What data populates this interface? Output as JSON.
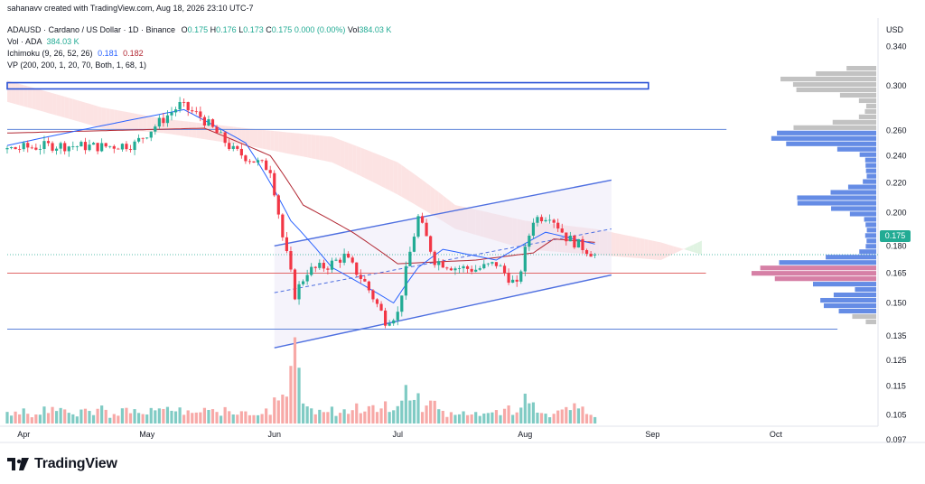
{
  "header": {
    "creator": "sahanavv created with TradingView.com, Aug 18, 2026 23:10 UTC-7",
    "symbol": "ADAUSD · Cardano / US Dollar · 1D · Binance",
    "ohlc": {
      "o_label": "O",
      "o": "0.175",
      "h_label": "H",
      "h": "0.176",
      "l_label": "L",
      "l": "0.173",
      "c_label": "C",
      "c": "0.175",
      "change": "0.000 (0.00%)",
      "vol_label": "Vol",
      "vol": "384.03 K"
    },
    "vol_line": {
      "label": "Vol · ADA",
      "value": "384.03 K"
    },
    "ichimoku": {
      "label": "Ichimoku (9, 26, 52, 26)",
      "v1": "0.181",
      "v2": "0.182"
    },
    "vp": {
      "label": "VP (200, 200, 1, 20, 70, Both, 1, 68, 1)"
    }
  },
  "brand": {
    "name": "TradingView"
  },
  "colors": {
    "up": "#22ab94",
    "down": "#f23645",
    "vol_up": "#80cbc4",
    "vol_down": "#f7a9a7",
    "tenkan": "#2962ff",
    "kijun": "#b22833",
    "cloud_bear": "#fbd9d9",
    "cloud_bull": "#d6efd8",
    "channel": "#4e6fe0",
    "level": "#5b82d9",
    "support_red": "#e06666",
    "vp_grey": "#b7b7b7",
    "vp_blue": "#4a78e0",
    "vp_red": "#cf6a96"
  },
  "chart_data": {
    "type": "candlestick",
    "title": "ADAUSD · Cardano / US Dollar · 1D · Binance",
    "y_axis": {
      "unit": "USD",
      "scale": "log",
      "ticks": [
        "0.340",
        "0.300",
        "0.260",
        "0.240",
        "0.220",
        "0.200",
        "0.180",
        "0.165",
        "0.150",
        "0.135",
        "0.125",
        "0.115",
        "0.105",
        "0.097"
      ],
      "last_price": "0.175"
    },
    "x_axis": {
      "ticks": [
        "Apr",
        "May",
        "Jun",
        "Jul",
        "Aug",
        "Sep",
        "Oct"
      ],
      "start_date": "2026-03-28",
      "end_date": "2026-08-18",
      "range": [
        "2026-03-28",
        "2026-10-25"
      ]
    },
    "ohlc_anchors": [
      {
        "date": "2026-03-28",
        "close": 0.245
      },
      {
        "date": "2026-04-08",
        "close": 0.248
      },
      {
        "date": "2026-04-20",
        "close": 0.247
      },
      {
        "date": "2026-04-28",
        "close": 0.249
      },
      {
        "date": "2026-05-09",
        "close": 0.282
      },
      {
        "date": "2026-05-14",
        "close": 0.272
      },
      {
        "date": "2026-05-22",
        "close": 0.244
      },
      {
        "date": "2026-05-31",
        "close": 0.23
      },
      {
        "date": "2026-06-03",
        "close": 0.185
      },
      {
        "date": "2026-06-06",
        "close": 0.154
      },
      {
        "date": "2026-06-09",
        "close": 0.166
      },
      {
        "date": "2026-06-14",
        "close": 0.169
      },
      {
        "date": "2026-06-18",
        "close": 0.174
      },
      {
        "date": "2026-06-23",
        "close": 0.16
      },
      {
        "date": "2026-06-28",
        "close": 0.142
      },
      {
        "date": "2026-07-01",
        "close": 0.145
      },
      {
        "date": "2026-07-06",
        "close": 0.197
      },
      {
        "date": "2026-07-10",
        "close": 0.172
      },
      {
        "date": "2026-07-15",
        "close": 0.168
      },
      {
        "date": "2026-07-20",
        "close": 0.167
      },
      {
        "date": "2026-07-25",
        "close": 0.17
      },
      {
        "date": "2026-07-30",
        "close": 0.158
      },
      {
        "date": "2026-08-03",
        "close": 0.196
      },
      {
        "date": "2026-08-07",
        "close": 0.199
      },
      {
        "date": "2026-08-11",
        "close": 0.185
      },
      {
        "date": "2026-08-18",
        "close": 0.175
      }
    ],
    "ichimoku": {
      "tenkan_anchors": [
        {
          "date": "2026-03-28",
          "value": 0.248
        },
        {
          "date": "2026-05-10",
          "value": 0.278
        },
        {
          "date": "2026-05-25",
          "value": 0.25
        },
        {
          "date": "2026-06-05",
          "value": 0.195
        },
        {
          "date": "2026-06-15",
          "value": 0.168
        },
        {
          "date": "2026-06-30",
          "value": 0.15
        },
        {
          "date": "2026-07-06",
          "value": 0.168
        },
        {
          "date": "2026-07-12",
          "value": 0.178
        },
        {
          "date": "2026-07-25",
          "value": 0.172
        },
        {
          "date": "2026-08-06",
          "value": 0.188
        },
        {
          "date": "2026-08-18",
          "value": 0.181
        }
      ],
      "kijun_anchors": [
        {
          "date": "2026-03-28",
          "value": 0.258
        },
        {
          "date": "2026-05-15",
          "value": 0.262
        },
        {
          "date": "2026-05-31",
          "value": 0.24
        },
        {
          "date": "2026-06-08",
          "value": 0.205
        },
        {
          "date": "2026-06-20",
          "value": 0.188
        },
        {
          "date": "2026-07-01",
          "value": 0.17
        },
        {
          "date": "2026-07-20",
          "value": 0.172
        },
        {
          "date": "2026-08-03",
          "value": 0.176
        },
        {
          "date": "2026-08-08",
          "value": 0.184
        },
        {
          "date": "2026-08-18",
          "value": 0.182
        }
      ],
      "cloud_anchors": [
        {
          "date": "2026-03-28",
          "a": 0.305,
          "b": 0.285
        },
        {
          "date": "2026-04-20",
          "a": 0.28,
          "b": 0.262
        },
        {
          "date": "2026-05-05",
          "a": 0.27,
          "b": 0.258
        },
        {
          "date": "2026-05-25",
          "a": 0.262,
          "b": 0.248
        },
        {
          "date": "2026-06-15",
          "a": 0.255,
          "b": 0.235
        },
        {
          "date": "2026-07-01",
          "a": 0.235,
          "b": 0.212
        },
        {
          "date": "2026-07-15",
          "a": 0.205,
          "b": 0.19
        },
        {
          "date": "2026-08-01",
          "a": 0.195,
          "b": 0.178
        },
        {
          "date": "2026-08-18",
          "a": 0.19,
          "b": 0.175
        },
        {
          "date": "2026-09-03",
          "a": 0.182,
          "b": 0.172
        },
        {
          "date": "2026-09-13",
          "a": 0.175,
          "b": 0.183
        }
      ]
    },
    "drawings": {
      "resistance_box": {
        "date_from": "2026-03-28",
        "date_to": "2026-08-31",
        "price_top": 0.303,
        "price_bottom": 0.297
      },
      "h_line_top": {
        "price": 0.261,
        "date_from": "2026-03-28",
        "date_to": "2026-09-19"
      },
      "h_line_red": {
        "price": 0.165,
        "date_from": "2026-03-28",
        "date_to": "2026-09-14"
      },
      "h_line_bottom": {
        "price": 0.138,
        "date_from": "2026-03-28",
        "date_to": "2026-10-16"
      },
      "channel_upper": {
        "from": [
          "2026-06-01",
          0.18
        ],
        "to": [
          "2026-08-22",
          0.222
        ]
      },
      "channel_lower": {
        "from": [
          "2026-06-01",
          0.13
        ],
        "to": [
          "2026-08-22",
          0.164
        ]
      },
      "channel_mid": {
        "from": [
          "2026-06-01",
          0.155
        ],
        "to": [
          "2026-08-22",
          0.19
        ]
      }
    },
    "volume_profile": {
      "price_min": 0.14,
      "price_max": 0.32,
      "bins": 48,
      "shape_peaks": [
        {
          "price": 0.303,
          "rel": 0.7
        },
        {
          "price": 0.256,
          "rel": 0.85
        },
        {
          "price": 0.208,
          "rel": 0.55
        },
        {
          "price": 0.166,
          "rel": 1.0
        },
        {
          "price": 0.15,
          "rel": 0.45
        }
      ],
      "value_area": {
        "high": 0.262,
        "low": 0.145
      }
    }
  }
}
